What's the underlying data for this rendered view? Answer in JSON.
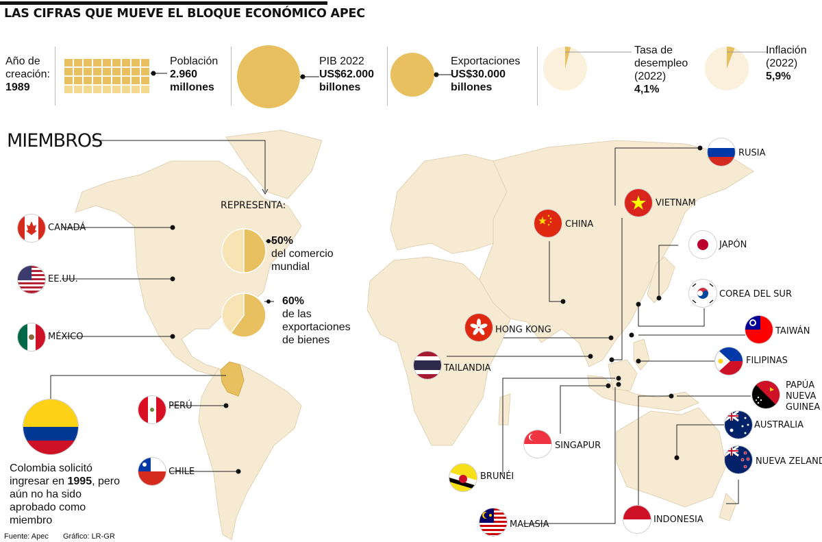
{
  "header": {
    "title": "LAS CIFRAS QUE MUEVE EL BLOQUE ECONÓMICO APEC"
  },
  "stats": {
    "creation": {
      "label": "Año de creación:",
      "value": "1989"
    },
    "population": {
      "label": "Población",
      "value1": "2.960",
      "value2": "millones"
    },
    "gdp": {
      "label": "PIB 2022",
      "value1": "US$62.000",
      "value2": "billones"
    },
    "exports": {
      "label": "Exportaciones",
      "value1": "US$30.000",
      "value2": "billones"
    },
    "unemployment": {
      "label1": "Tasa de",
      "label2": "desempleo",
      "label3": "(2022)",
      "value": "4,1%",
      "fraction": 0.041
    },
    "inflation": {
      "label1": "Inflación",
      "label2": "(2022)",
      "value": "5,9%",
      "fraction": 0.059
    }
  },
  "map": {
    "heading": "MIEMBROS",
    "represents_label": "REPRESENTA:",
    "share_trade": {
      "value": "50%",
      "line1": "del comercio",
      "line2": "mundial",
      "fraction": 0.5
    },
    "share_exports": {
      "value": "60%",
      "line1": "de las",
      "line2": "exportaciones",
      "line3": "de bienes",
      "fraction": 0.6
    }
  },
  "members": {
    "canada": "CANADÁ",
    "usa": "EE.UU.",
    "mexico": "MÉXICO",
    "peru": "PERÚ",
    "chile": "CHILE",
    "russia": "RUSIA",
    "vietnam": "VIETNAM",
    "china": "CHINA",
    "japan": "JAPÓN",
    "korea": "COREA DEL SUR",
    "hongkong": "HONG KONG",
    "taiwan": "TAIWÁN",
    "thailand": "TAILANDIA",
    "philippines": "FILIPINAS",
    "png1": "PAPÚA",
    "png2": "NUEVA",
    "png3": "GUINEA",
    "singapore": "SINGAPUR",
    "australia": "AUSTRALIA",
    "brunei": "BRUNÉI",
    "newzealand": "NUEVA ZELANDA",
    "malaysia": "MALASIA",
    "indonesia": "INDONESIA"
  },
  "colombia_note": {
    "line1": "Colombia solicitó",
    "line2a": "ingresar en ",
    "line2b": "1995",
    "line2c": ", pero",
    "line3": "aún no ha sido",
    "line4": "aprobado como",
    "line5": "miembro"
  },
  "footer": {
    "source": "Fuente: Apec",
    "graphic": "Gráfico: LR-GR"
  },
  "colors": {
    "gold": "#e8c060",
    "land": "#f6ead3",
    "pale": "#fbf0dc"
  }
}
